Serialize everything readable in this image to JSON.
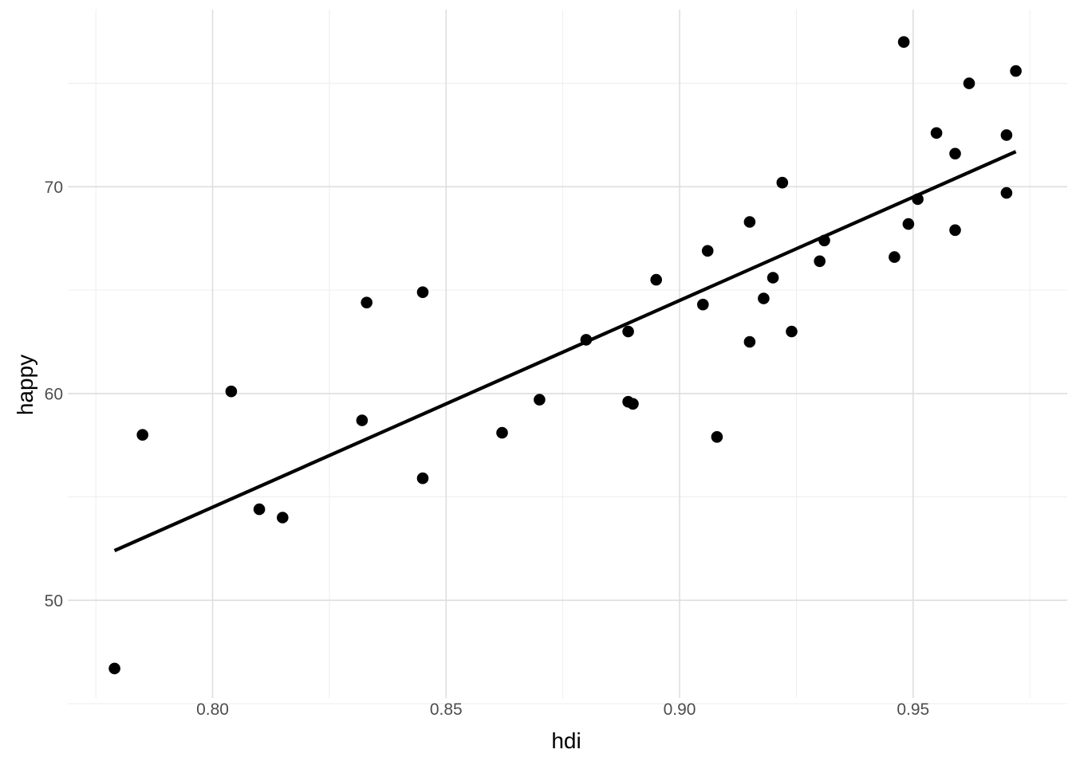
{
  "chart_data": {
    "type": "scatter",
    "title": "",
    "xlabel": "hdi",
    "ylabel": "happy",
    "xlim": [
      0.769,
      0.983
    ],
    "ylim": [
      45.27,
      78.57
    ],
    "grid": true,
    "legend": false,
    "x_ticks_major": [
      0.8,
      0.85,
      0.9,
      0.95
    ],
    "x_tick_labels": [
      "0.80",
      "0.85",
      "0.90",
      "0.95"
    ],
    "x_ticks_minor": [
      0.775,
      0.825,
      0.875,
      0.925,
      0.975
    ],
    "y_ticks_major": [
      50,
      60,
      70
    ],
    "y_tick_labels": [
      "50",
      "60",
      "70"
    ],
    "y_ticks_minor": [
      45,
      55,
      65,
      75
    ],
    "points": [
      [
        0.779,
        46.7
      ],
      [
        0.785,
        58.0
      ],
      [
        0.804,
        60.1
      ],
      [
        0.81,
        54.4
      ],
      [
        0.815,
        54.0
      ],
      [
        0.832,
        58.7
      ],
      [
        0.833,
        64.4
      ],
      [
        0.845,
        64.9
      ],
      [
        0.845,
        55.9
      ],
      [
        0.862,
        58.1
      ],
      [
        0.87,
        59.7
      ],
      [
        0.88,
        62.6
      ],
      [
        0.889,
        63.0
      ],
      [
        0.889,
        59.6
      ],
      [
        0.89,
        59.5
      ],
      [
        0.895,
        65.5
      ],
      [
        0.905,
        64.3
      ],
      [
        0.906,
        66.9
      ],
      [
        0.908,
        57.9
      ],
      [
        0.915,
        68.3
      ],
      [
        0.915,
        62.5
      ],
      [
        0.918,
        64.6
      ],
      [
        0.92,
        65.6
      ],
      [
        0.922,
        70.2
      ],
      [
        0.924,
        63.0
      ],
      [
        0.93,
        66.4
      ],
      [
        0.931,
        67.4
      ],
      [
        0.946,
        66.6
      ],
      [
        0.948,
        77.0
      ],
      [
        0.949,
        68.2
      ],
      [
        0.951,
        69.4
      ],
      [
        0.955,
        72.6
      ],
      [
        0.959,
        71.6
      ],
      [
        0.959,
        67.9
      ],
      [
        0.962,
        75.0
      ],
      [
        0.97,
        72.5
      ],
      [
        0.97,
        69.7
      ],
      [
        0.972,
        75.6
      ]
    ],
    "trend_line": {
      "x1": 0.779,
      "y1": 52.4,
      "x2": 0.972,
      "y2": 71.7
    },
    "colors": {
      "background": "#ffffff",
      "point": "#000000",
      "trend": "#000000",
      "grid_major": "#dedede",
      "grid_minor": "#ececec",
      "tick_label": "#4d4d4d",
      "axis_title": "#000000"
    },
    "point_radius": 7.3,
    "trend_width": 4.3
  }
}
